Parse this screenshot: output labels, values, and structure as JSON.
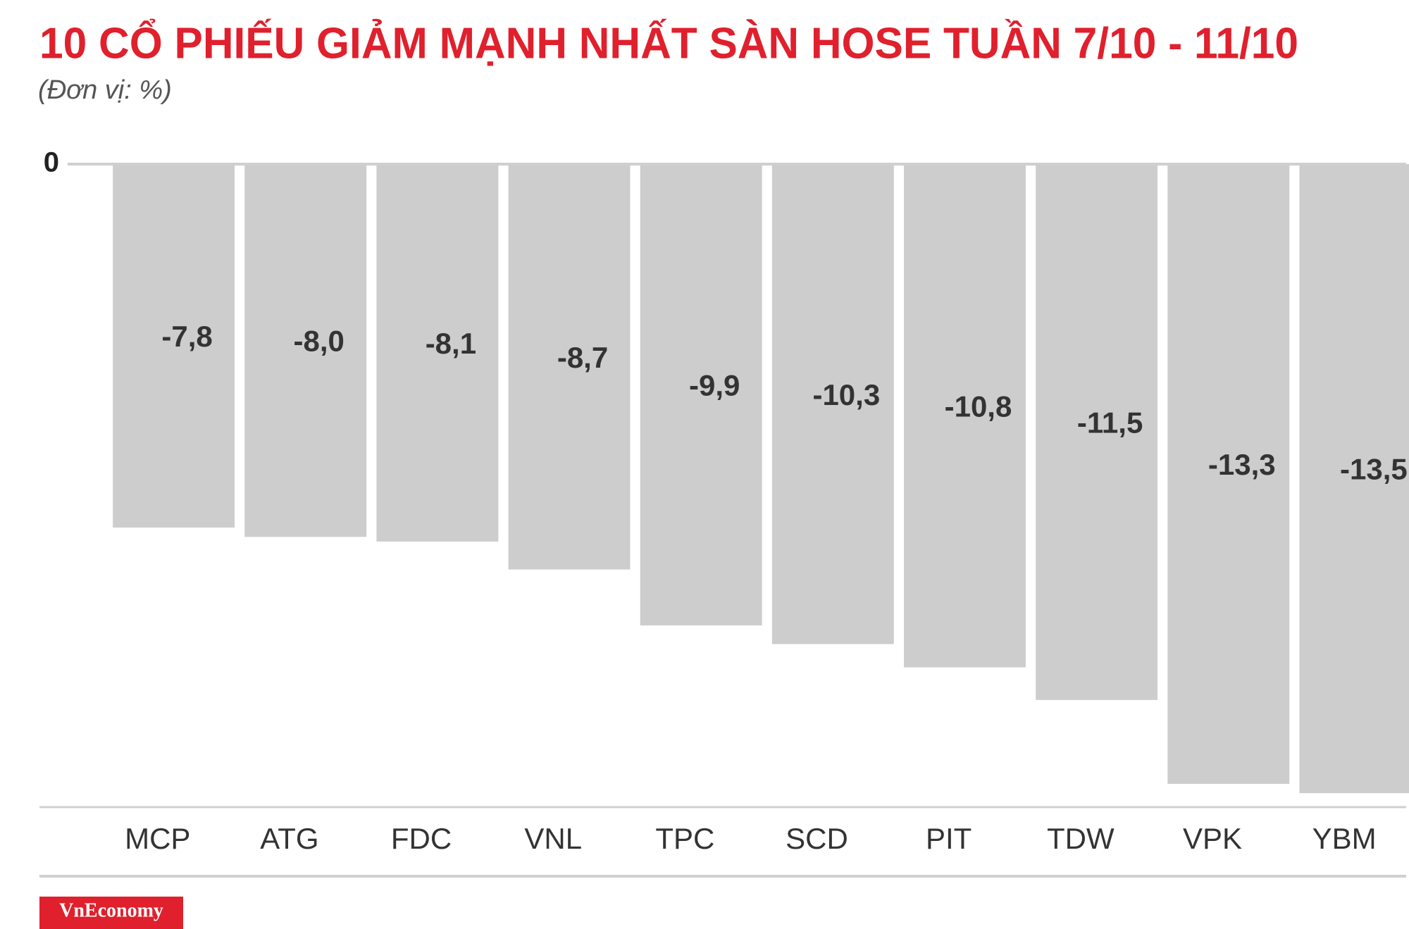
{
  "chart_data": {
    "type": "bar",
    "title": "10 CỔ PHIẾU GIẢM MẠNH NHẤT SÀN HOSE TUẦN 7/10 - 11/10",
    "subtitle": "(Đơn vị: %)",
    "categories": [
      "MCP",
      "ATG",
      "FDC",
      "VNL",
      "TPC",
      "SCD",
      "PIT",
      "TDW",
      "VPK",
      "YBM"
    ],
    "values": [
      -7.8,
      -8.0,
      -8.1,
      -8.7,
      -9.9,
      -10.3,
      -10.8,
      -11.5,
      -13.3,
      -13.5
    ],
    "value_labels": [
      "-7,8",
      "-8,0",
      "-8,1",
      "-8,7",
      "-9,9",
      "-10,3",
      "-10,8",
      "-11,5",
      "-13,3",
      "-13,5"
    ],
    "color": "#cdcdcd",
    "ylim": [
      -13.8,
      0
    ],
    "yticks": [
      0
    ],
    "source": "VnEconomy"
  }
}
